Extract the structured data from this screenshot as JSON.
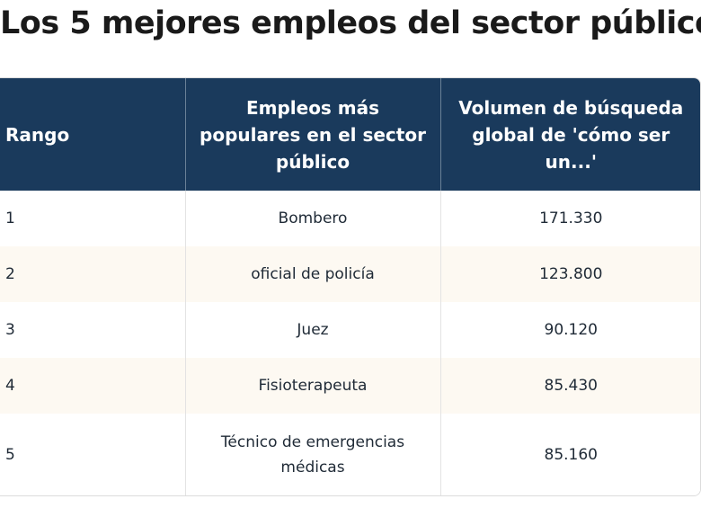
{
  "title": "Los 5 mejores empleos del sector público",
  "table": {
    "headers": {
      "rank": "Rango",
      "job": "Empleos más populares en el sector público",
      "volume": "Volumen de búsqueda global de 'cómo ser un...'"
    },
    "rows": [
      {
        "rank": "1",
        "job": "Bombero",
        "volume": "171.330"
      },
      {
        "rank": "2",
        "job": "oficial de policía",
        "volume": "123.800"
      },
      {
        "rank": "3",
        "job": "Juez",
        "volume": "90.120"
      },
      {
        "rank": "4",
        "job": "Fisioterapeuta",
        "volume": "85.430"
      },
      {
        "rank": "5",
        "job": "Técnico de emergencias médicas",
        "volume": "85.160"
      }
    ]
  },
  "colors": {
    "header_bg": "#1a3a5c",
    "header_text": "#ffffff",
    "row_alt_bg": "#fdf9f2"
  }
}
